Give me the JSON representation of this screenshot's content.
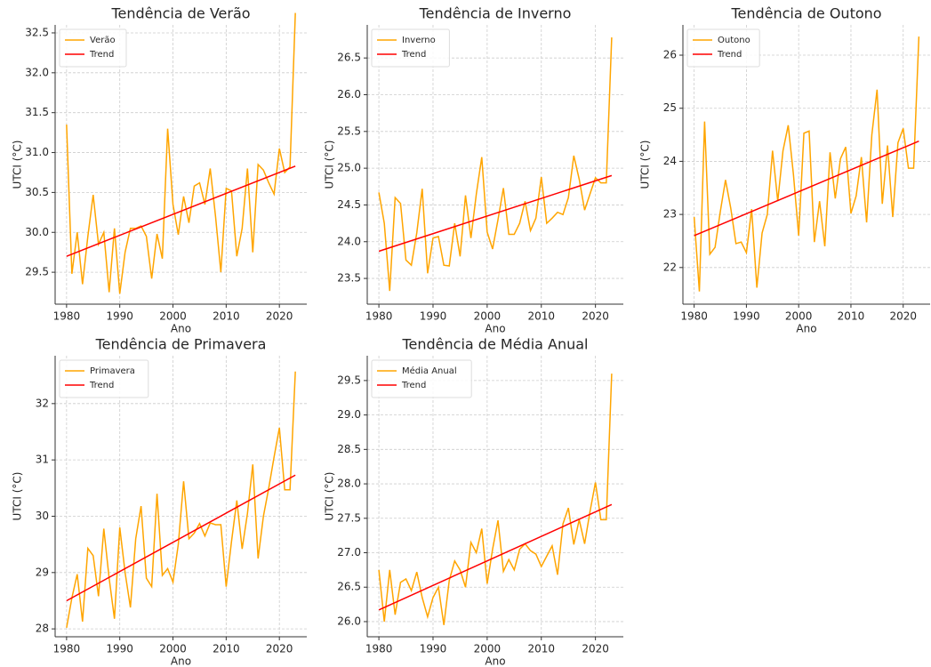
{
  "chart_data": [
    {
      "type": "line",
      "title": "Tendência de Verão",
      "xlabel": "Ano",
      "ylabel": "UTCI (°C)",
      "legend": "upper left",
      "grid": true,
      "x": [
        1980,
        1981,
        1982,
        1983,
        1984,
        1985,
        1986,
        1987,
        1988,
        1989,
        1990,
        1991,
        1992,
        1993,
        1994,
        1995,
        1996,
        1997,
        1998,
        1999,
        2000,
        2001,
        2002,
        2003,
        2004,
        2005,
        2006,
        2007,
        2008,
        2009,
        2010,
        2011,
        2012,
        2013,
        2014,
        2015,
        2016,
        2017,
        2018,
        2019,
        2020,
        2021,
        2022,
        2023
      ],
      "series": [
        {
          "name": "Verão",
          "color": "#ffa500",
          "values": [
            31.35,
            29.48,
            30.0,
            29.35,
            29.95,
            30.47,
            29.85,
            30.0,
            29.25,
            30.05,
            29.23,
            29.75,
            30.05,
            30.05,
            30.08,
            29.95,
            29.42,
            29.98,
            29.67,
            31.3,
            30.35,
            29.97,
            30.45,
            30.12,
            30.58,
            30.62,
            30.35,
            30.8,
            30.2,
            29.5,
            30.55,
            30.52,
            29.7,
            30.05,
            30.8,
            29.75,
            30.85,
            30.78,
            30.62,
            30.48,
            31.05,
            30.75,
            30.82,
            32.75
          ]
        },
        {
          "name": "Trend",
          "color": "#ff0000",
          "x": [
            1980,
            2023
          ],
          "values": [
            29.7,
            30.83
          ]
        }
      ],
      "xlim": [
        1977.85,
        2025.15
      ],
      "xticks": [
        1980,
        1990,
        2000,
        2010,
        2020
      ],
      "ylim": [
        29.1,
        32.6
      ],
      "yticks": [
        29.5,
        {
          "value": 30,
          "label": "30.0"
        },
        30.5,
        {
          "value": 31,
          "label": "31.0"
        },
        31.5,
        {
          "value": 32,
          "label": "32.0"
        },
        32.5
      ]
    },
    {
      "type": "line",
      "title": "Tendência de Inverno",
      "xlabel": "Ano",
      "ylabel": "UTCI (°C)",
      "legend": "upper left",
      "grid": true,
      "x": [
        1980,
        1981,
        1982,
        1983,
        1984,
        1985,
        1986,
        1987,
        1988,
        1989,
        1990,
        1991,
        1992,
        1993,
        1994,
        1995,
        1996,
        1997,
        1998,
        1999,
        2000,
        2001,
        2002,
        2003,
        2004,
        2005,
        2006,
        2007,
        2008,
        2009,
        2010,
        2011,
        2012,
        2013,
        2014,
        2015,
        2016,
        2017,
        2018,
        2019,
        2020,
        2021,
        2022,
        2023
      ],
      "series": [
        {
          "name": "Inverno",
          "color": "#ffa500",
          "values": [
            24.67,
            24.25,
            23.33,
            24.6,
            24.52,
            23.75,
            23.68,
            24.12,
            24.72,
            23.57,
            24.05,
            24.07,
            23.68,
            23.67,
            24.25,
            23.8,
            24.63,
            24.05,
            24.65,
            25.15,
            24.13,
            23.9,
            24.3,
            24.73,
            24.1,
            24.1,
            24.25,
            24.55,
            24.15,
            24.32,
            24.88,
            24.25,
            24.32,
            24.4,
            24.37,
            24.6,
            25.17,
            24.85,
            24.43,
            24.65,
            24.87,
            24.8,
            24.8,
            26.78
          ]
        },
        {
          "name": "Trend",
          "color": "#ff0000",
          "x": [
            1980,
            2023
          ],
          "values": [
            23.87,
            24.9
          ]
        }
      ],
      "xlim": [
        1977.85,
        2025.15
      ],
      "xticks": [
        1980,
        1990,
        2000,
        2010,
        2020
      ],
      "ylim": [
        23.15,
        26.95
      ],
      "yticks": [
        23.5,
        {
          "value": 24,
          "label": "24.0"
        },
        24.5,
        {
          "value": 25,
          "label": "25.0"
        },
        25.5,
        {
          "value": 26,
          "label": "26.0"
        },
        26.5
      ]
    },
    {
      "type": "line",
      "title": "Tendência de Outono",
      "xlabel": "Ano",
      "ylabel": "UTCI (°C)",
      "legend": "upper left",
      "grid": true,
      "x": [
        1980,
        1981,
        1982,
        1983,
        1984,
        1985,
        1986,
        1987,
        1988,
        1989,
        1990,
        1991,
        1992,
        1993,
        1994,
        1995,
        1996,
        1997,
        1998,
        1999,
        2000,
        2001,
        2002,
        2003,
        2004,
        2005,
        2006,
        2007,
        2008,
        2009,
        2010,
        2011,
        2012,
        2013,
        2014,
        2015,
        2016,
        2017,
        2018,
        2019,
        2020,
        2021,
        2022,
        2023
      ],
      "series": [
        {
          "name": "Outono",
          "color": "#ffa500",
          "values": [
            22.95,
            21.55,
            24.75,
            22.25,
            22.38,
            23.05,
            23.65,
            23.12,
            22.45,
            22.48,
            22.28,
            23.1,
            21.62,
            22.65,
            23.0,
            24.2,
            23.25,
            24.2,
            24.68,
            23.75,
            22.6,
            24.53,
            24.57,
            22.48,
            23.25,
            22.4,
            24.17,
            23.3,
            24.05,
            24.27,
            23.02,
            23.35,
            24.08,
            22.85,
            24.5,
            25.35,
            23.2,
            24.3,
            22.95,
            24.35,
            24.62,
            23.87,
            23.87,
            26.35
          ]
        },
        {
          "name": "Trend",
          "color": "#ff0000",
          "x": [
            1980,
            2023
          ],
          "values": [
            22.6,
            24.38
          ]
        }
      ],
      "xlim": [
        1977.85,
        2025.15
      ],
      "xticks": [
        1980,
        1990,
        2000,
        2010,
        2020
      ],
      "ylim": [
        21.31,
        26.57
      ],
      "yticks": [
        22,
        23,
        24,
        25,
        26
      ]
    },
    {
      "type": "line",
      "title": "Tendência de Primavera",
      "xlabel": "Ano",
      "ylabel": "UTCI (°C)",
      "legend": "upper left",
      "grid": true,
      "x": [
        1980,
        1981,
        1982,
        1983,
        1984,
        1985,
        1986,
        1987,
        1988,
        1989,
        1990,
        1991,
        1992,
        1993,
        1994,
        1995,
        1996,
        1997,
        1998,
        1999,
        2000,
        2001,
        2002,
        2003,
        2004,
        2005,
        2006,
        2007,
        2008,
        2009,
        2010,
        2011,
        2012,
        2013,
        2014,
        2015,
        2016,
        2017,
        2018,
        2019,
        2020,
        2021,
        2022,
        2023
      ],
      "series": [
        {
          "name": "Primavera",
          "color": "#ffa500",
          "values": [
            28.02,
            28.55,
            28.97,
            28.13,
            29.43,
            29.3,
            28.58,
            29.78,
            28.9,
            28.18,
            29.8,
            29.0,
            28.38,
            29.6,
            30.18,
            28.9,
            28.75,
            30.4,
            28.95,
            29.07,
            28.83,
            29.5,
            30.62,
            29.6,
            29.7,
            29.87,
            29.65,
            29.88,
            29.85,
            29.85,
            28.75,
            29.55,
            30.28,
            29.42,
            30.05,
            30.92,
            29.25,
            30.0,
            30.5,
            31.05,
            31.57,
            30.47,
            30.47,
            32.57
          ]
        },
        {
          "name": "Trend",
          "color": "#ff0000",
          "x": [
            1980,
            2023
          ],
          "values": [
            28.5,
            30.73
          ]
        }
      ],
      "xlim": [
        1977.85,
        2025.15
      ],
      "xticks": [
        1980,
        1990,
        2000,
        2010,
        2020
      ],
      "ylim": [
        27.86,
        32.85
      ],
      "yticks": [
        28,
        29,
        30,
        31,
        32
      ]
    },
    {
      "type": "line",
      "title": "Tendência de Média Anual",
      "xlabel": "Ano",
      "ylabel": "UTCI (°C)",
      "legend": "upper left",
      "grid": true,
      "x": [
        1980,
        1981,
        1982,
        1983,
        1984,
        1985,
        1986,
        1987,
        1988,
        1989,
        1990,
        1991,
        1992,
        1993,
        1994,
        1995,
        1996,
        1997,
        1998,
        1999,
        2000,
        2001,
        2002,
        2003,
        2004,
        2005,
        2006,
        2007,
        2008,
        2009,
        2010,
        2011,
        2012,
        2013,
        2014,
        2015,
        2016,
        2017,
        2018,
        2019,
        2020,
        2021,
        2022,
        2023
      ],
      "series": [
        {
          "name": "Média Anual",
          "color": "#ffa500",
          "values": [
            26.75,
            26.0,
            26.75,
            26.1,
            26.57,
            26.62,
            26.45,
            26.72,
            26.35,
            26.07,
            26.35,
            26.5,
            25.95,
            26.6,
            26.88,
            26.75,
            26.5,
            27.15,
            27.0,
            27.35,
            26.55,
            27.05,
            27.47,
            26.73,
            26.9,
            26.75,
            27.05,
            27.13,
            27.03,
            26.98,
            26.8,
            26.95,
            27.1,
            26.68,
            27.42,
            27.65,
            27.12,
            27.48,
            27.13,
            27.6,
            28.02,
            27.48,
            27.48,
            29.6
          ]
        },
        {
          "name": "Trend",
          "color": "#ff0000",
          "x": [
            1980,
            2023
          ],
          "values": [
            26.17,
            27.7
          ]
        }
      ],
      "xlim": [
        1977.85,
        2025.15
      ],
      "xticks": [
        1980,
        1990,
        2000,
        2010,
        2020
      ],
      "ylim": [
        25.78,
        29.86
      ],
      "yticks": [
        {
          "value": 26,
          "label": "26.0"
        },
        26.5,
        {
          "value": 27,
          "label": "27.0"
        },
        27.5,
        {
          "value": 28,
          "label": "28.0"
        },
        28.5,
        {
          "value": 29,
          "label": "29.0"
        },
        29.5
      ]
    }
  ]
}
